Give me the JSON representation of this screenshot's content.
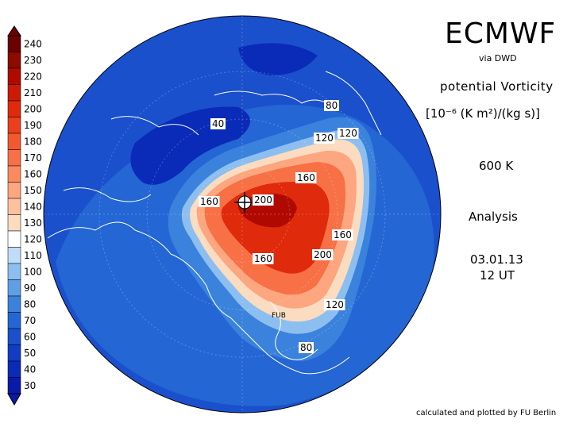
{
  "header": {
    "title": "ECMWF",
    "source": "via DWD",
    "quantity": "potential Vorticity",
    "units": "[10⁻⁶ (K m²)/(kg s)]",
    "level": "600 K",
    "mode": "Analysis",
    "date": "03.01.13",
    "time": "12 UT"
  },
  "footer": {
    "credit": "calculated and plotted by FU Berlin"
  },
  "map": {
    "projection": "polar stereographic (north pole)",
    "logo_text": "FUB"
  },
  "colorbar": {
    "levels": [
      "240",
      "230",
      "220",
      "210",
      "200",
      "190",
      "180",
      "170",
      "160",
      "150",
      "140",
      "130",
      "120",
      "110",
      "100",
      "90",
      "80",
      "70",
      "60",
      "50",
      "40",
      "30"
    ],
    "colors": [
      "#6b0000",
      "#8c0a00",
      "#b00a00",
      "#cc1a05",
      "#e02a0c",
      "#ec3f1c",
      "#f2592f",
      "#f77046",
      "#fb8a5e",
      "#fda67f",
      "#fdc19f",
      "#fcdcc0",
      "#ffffff",
      "#bfdcf8",
      "#8cbff0",
      "#5f9fe6",
      "#3a82dc",
      "#2466d4",
      "#1a50cc",
      "#123cc4",
      "#0a2ab8",
      "#0a1aa8"
    ]
  },
  "contour_labels": [
    {
      "text": "40"
    },
    {
      "text": "80"
    },
    {
      "text": "120"
    },
    {
      "text": "120"
    },
    {
      "text": "160"
    },
    {
      "text": "160"
    },
    {
      "text": "200"
    },
    {
      "text": "160"
    },
    {
      "text": "200"
    },
    {
      "text": "160"
    },
    {
      "text": "120"
    },
    {
      "text": "80"
    }
  ],
  "map_colors": {
    "ocean": "#1a50cc",
    "low": "#0a2ab8",
    "mid_blue": "#3a82dc",
    "light_blue": "#8cbff0",
    "white": "#ffffff",
    "peach": "#fcdcc0",
    "light_orange": "#fda67f",
    "orange": "#f77046",
    "red": "#e02a0c",
    "deep_red": "#b00a00",
    "coast": "#ffffff"
  }
}
